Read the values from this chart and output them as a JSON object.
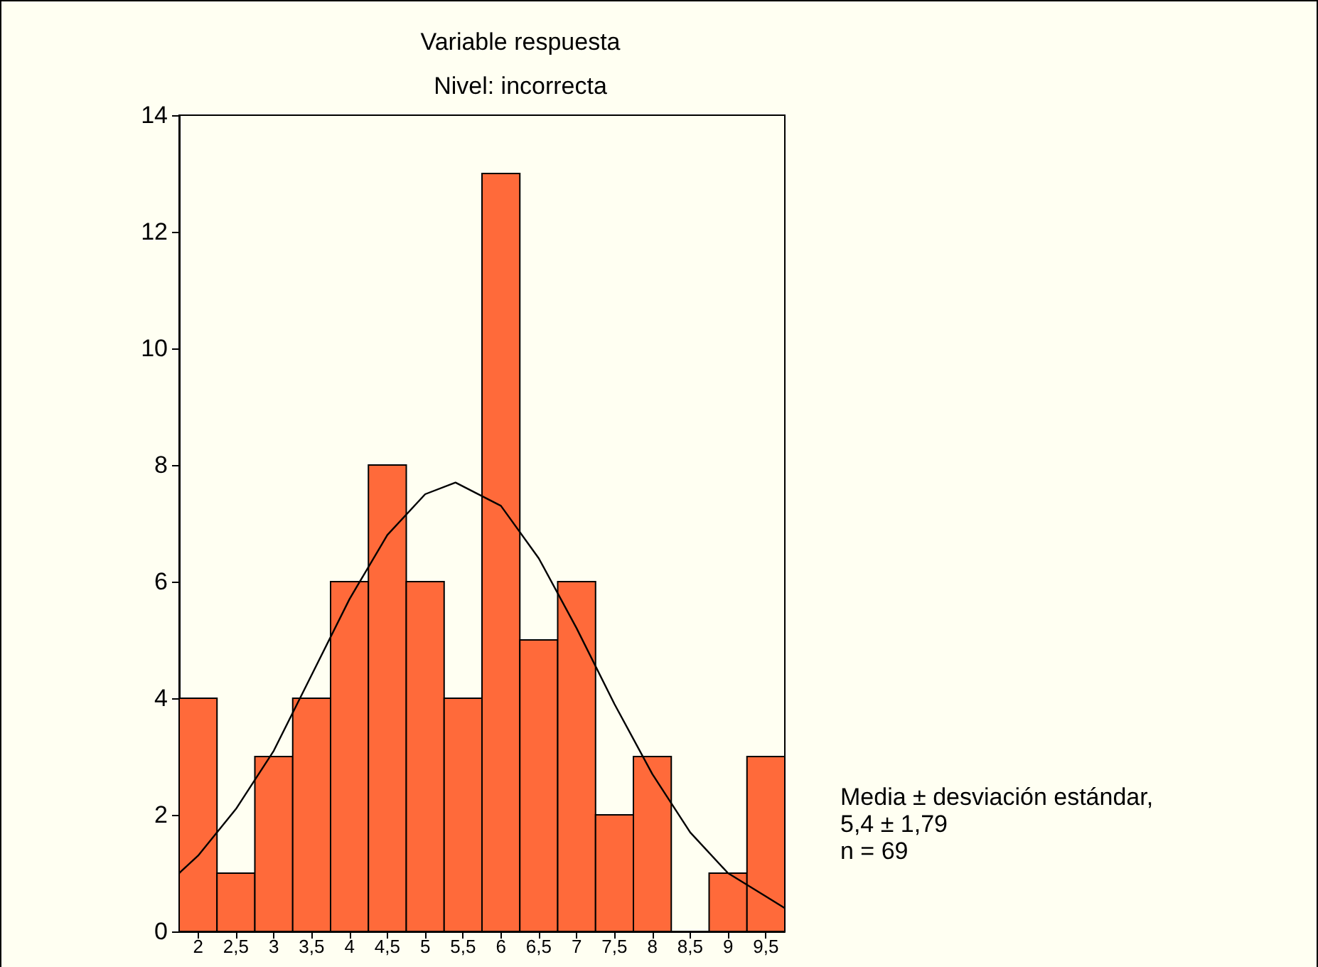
{
  "chart_data": {
    "type": "histogram",
    "title": "Variable respuesta",
    "subtitle": "Nivel: incorrecta",
    "bins": [
      1.75,
      2.25,
      2.75,
      3.25,
      3.75,
      4.25,
      4.75,
      5.25,
      5.75,
      6.25,
      6.75,
      7.25,
      7.75,
      8.25,
      8.75,
      9.25,
      9.75
    ],
    "values": [
      4,
      1,
      3,
      4,
      6,
      8,
      6,
      4,
      13,
      5,
      6,
      2,
      3,
      0,
      1,
      3
    ],
    "color": "#ff6a3a",
    "series": [
      {
        "type": "line",
        "color": "#000000",
        "x": [
          1.75,
          2,
          2.5,
          3,
          3.5,
          4,
          4.5,
          5,
          5.4,
          6,
          6.5,
          7,
          7.5,
          8,
          8.5,
          9,
          9.5,
          9.75
        ],
        "values": [
          1.0,
          1.3,
          2.1,
          3.1,
          4.4,
          5.7,
          6.8,
          7.5,
          7.7,
          7.3,
          6.4,
          5.2,
          3.9,
          2.7,
          1.7,
          1.0,
          0.6,
          0.4
        ]
      }
    ],
    "xlim": [
      1.75,
      9.75
    ],
    "xticks": [
      2,
      {
        "value": 2.5,
        "label": "2,5"
      },
      3,
      {
        "value": 3.5,
        "label": "3,5"
      },
      4,
      {
        "value": 4.5,
        "label": "4,5"
      },
      5,
      {
        "value": 5.5,
        "label": "5,5"
      },
      6,
      {
        "value": 6.5,
        "label": "6,5"
      },
      7,
      {
        "value": 7.5,
        "label": "7,5"
      },
      8,
      {
        "value": 8.5,
        "label": "8,5"
      },
      9,
      {
        "value": 9.5,
        "label": "9,5"
      }
    ],
    "ylim": [
      0,
      14
    ],
    "yticks": [
      0,
      2,
      4,
      6,
      8,
      10,
      12,
      14
    ],
    "grid": false,
    "marker": "none",
    "line_style": "solid",
    "annotations": [
      "Media ± desviación estándar,",
      "5,4 ± 1,79",
      "n = 69"
    ]
  }
}
